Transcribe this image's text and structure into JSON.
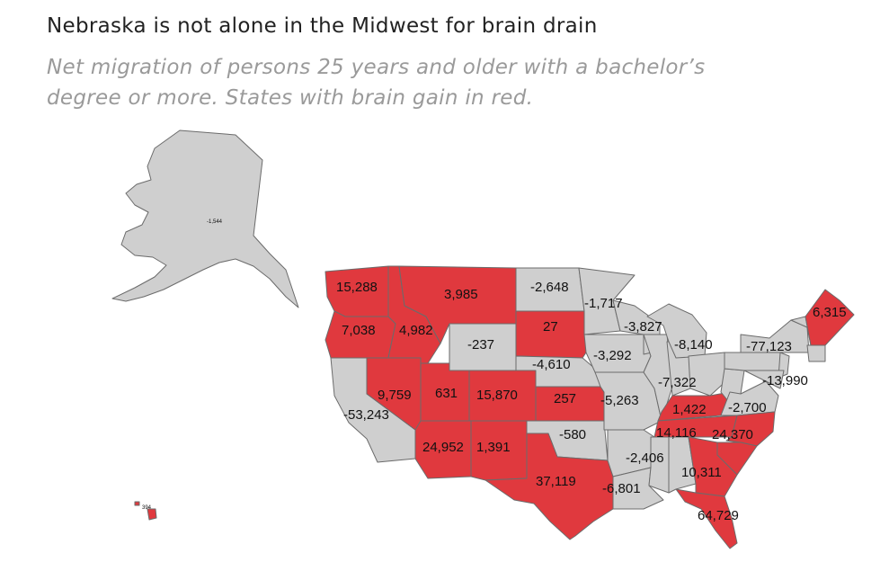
{
  "header": {
    "title": "Nebraska is not alone in the Midwest for brain drain",
    "subtitle_line1": "Net migration of persons 25 years and older with a bachelor’s",
    "subtitle_line2": "degree or more. States with brain gain in red."
  },
  "colors": {
    "gain": "#e0393e",
    "loss": "#cfcfcf",
    "border": "#6b6b6b"
  },
  "states": [
    {
      "id": "WA",
      "label": "15,288",
      "gain": true
    },
    {
      "id": "OR",
      "label": "7,038",
      "gain": true
    },
    {
      "id": "ID",
      "label": "4,982",
      "gain": true
    },
    {
      "id": "MT",
      "label": "3,985",
      "gain": true
    },
    {
      "id": "WY",
      "label": "-237",
      "gain": false
    },
    {
      "id": "NV",
      "label": "9,759",
      "gain": true
    },
    {
      "id": "UT",
      "label": "631",
      "gain": true
    },
    {
      "id": "CO",
      "label": "15,870",
      "gain": true
    },
    {
      "id": "AZ",
      "label": "24,952",
      "gain": true
    },
    {
      "id": "NM",
      "label": "1,391",
      "gain": true
    },
    {
      "id": "CA",
      "label": "-53,243",
      "gain": false
    },
    {
      "id": "ND",
      "label": "-2,648",
      "gain": false
    },
    {
      "id": "SD",
      "label": "27",
      "gain": true
    },
    {
      "id": "NE",
      "label": "-4,610",
      "gain": false
    },
    {
      "id": "KS",
      "label": "257",
      "gain": true
    },
    {
      "id": "OK",
      "label": "-580",
      "gain": false
    },
    {
      "id": "TX",
      "label": "37,119",
      "gain": true
    },
    {
      "id": "MN",
      "label": "-1,717",
      "gain": false
    },
    {
      "id": "IA",
      "label": "-3,292",
      "gain": false
    },
    {
      "id": "MO",
      "label": "-5,263",
      "gain": false
    },
    {
      "id": "AR",
      "label": "-2,406",
      "gain": false
    },
    {
      "id": "LA",
      "label": "-6,801",
      "gain": false
    },
    {
      "id": "WI",
      "label": "-3,827",
      "gain": false
    },
    {
      "id": "MI",
      "label": "-8,140",
      "gain": false
    },
    {
      "id": "OH",
      "label": "-7,322",
      "gain": false
    },
    {
      "id": "KY",
      "label": "1,422",
      "gain": true
    },
    {
      "id": "TN",
      "label": "14,116",
      "gain": true
    },
    {
      "id": "VA",
      "label": "-2,700",
      "gain": false
    },
    {
      "id": "NC",
      "label": "24,370",
      "gain": true
    },
    {
      "id": "SC",
      "label": "10,311",
      "gain": true
    },
    {
      "id": "GA",
      "label": "",
      "gain": true
    },
    {
      "id": "FL",
      "label": "64,729",
      "gain": true
    },
    {
      "id": "NY",
      "label": "-77,123",
      "gain": false
    },
    {
      "id": "ME",
      "label": "6,315",
      "gain": true
    },
    {
      "id": "NJ",
      "label": "-13,990",
      "gain": false
    },
    {
      "id": "AK",
      "label": "-1,544",
      "gain": false
    },
    {
      "id": "HI",
      "label": "394",
      "gain": true
    }
  ]
}
